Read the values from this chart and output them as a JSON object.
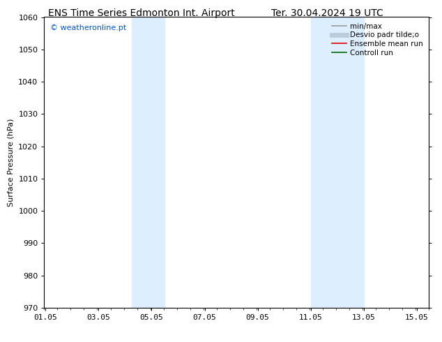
{
  "title_left": "ENS Time Series Edmonton Int. Airport",
  "title_right": "Ter. 30.04.2024 19 UTC",
  "ylabel": "Surface Pressure (hPa)",
  "xlim": [
    1.0,
    15.5
  ],
  "ylim": [
    970,
    1060
  ],
  "yticks": [
    970,
    980,
    990,
    1000,
    1010,
    1020,
    1030,
    1040,
    1050,
    1060
  ],
  "xticks": [
    1.05,
    3.05,
    5.05,
    7.05,
    9.05,
    11.05,
    13.05,
    15.05
  ],
  "xticklabels": [
    "01.05",
    "03.05",
    "05.05",
    "07.05",
    "09.05",
    "11.05",
    "13.05",
    "15.05"
  ],
  "shaded_bands": [
    {
      "x_start": 4.3,
      "x_end": 5.55
    },
    {
      "x_start": 11.05,
      "x_end": 13.05
    }
  ],
  "shade_color": "#ddeeff",
  "watermark_text": "© weatheronline.pt",
  "watermark_color": "#0055cc",
  "legend_entries": [
    {
      "label": "min/max",
      "color": "#999999",
      "lw": 1.2,
      "style": "solid"
    },
    {
      "label": "Desvio padr tilde;o",
      "color": "#bbccdd",
      "lw": 5,
      "style": "solid"
    },
    {
      "label": "Ensemble mean run",
      "color": "#dd0000",
      "lw": 1.2,
      "style": "solid"
    },
    {
      "label": "Controll run",
      "color": "#006600",
      "lw": 1.2,
      "style": "solid"
    }
  ],
  "bg_color": "#ffffff",
  "title_fontsize": 10,
  "axis_fontsize": 8,
  "tick_fontsize": 8,
  "legend_fontsize": 7.5
}
